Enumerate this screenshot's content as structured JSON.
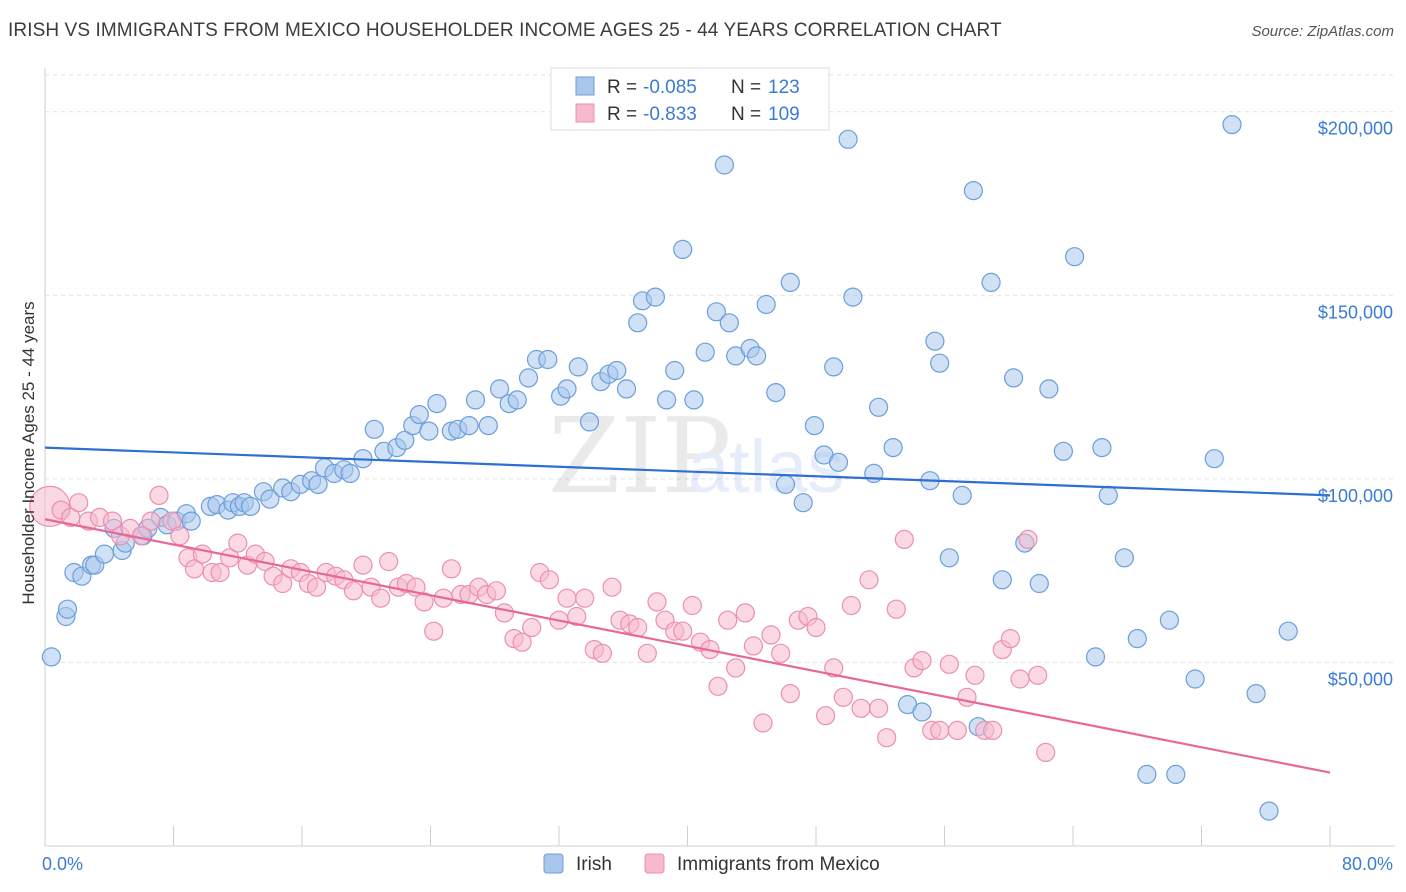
{
  "header": {
    "title": "IRISH VS IMMIGRANTS FROM MEXICO HOUSEHOLDER INCOME AGES 25 - 44 YEARS CORRELATION CHART",
    "source": "Source: ZipAtlas.com"
  },
  "watermark": {
    "zip": "ZIP",
    "atlas": "atlas"
  },
  "legend_box": {
    "r_label": "R =",
    "n_label": "N =",
    "rows": [
      {
        "r": "-0.085",
        "n": "123"
      },
      {
        "r": "-0.833",
        "n": "109"
      }
    ]
  },
  "colors": {
    "irish_fill": "#a9c7ec",
    "irish_stroke": "#6a9fdb",
    "irish_line": "#2f6fd0",
    "mexico_fill": "#f6b9cd",
    "mexico_stroke": "#ec8fae",
    "mexico_line": "#e8679a",
    "axis_text": "#3b7bd4",
    "grid": "#e2e2e2"
  },
  "chart_data": {
    "type": "scatter",
    "title": "IRISH VS IMMIGRANTS FROM MEXICO HOUSEHOLDER INCOME AGES 25 - 44 YEARS CORRELATION CHART",
    "xlabel": "",
    "ylabel": "Householder Income Ages 25 - 44 years",
    "xlim": [
      0,
      80
    ],
    "ylim": [
      0,
      210000
    ],
    "x_tick_labels": [
      "0.0%",
      "80.0%"
    ],
    "y_ticks": [
      50000,
      100000,
      150000,
      200000
    ],
    "y_tick_labels": [
      "$50,000",
      "$100,000",
      "$150,000",
      "$200,000"
    ],
    "grid": true,
    "legend_position": "top-center",
    "series": [
      {
        "name": "Irish",
        "r": -0.085,
        "n": 123,
        "trend": {
          "x": [
            0,
            80
          ],
          "y": [
            108500,
            95500
          ]
        },
        "points": [
          [
            0.4,
            51500
          ],
          [
            1.3,
            62500
          ],
          [
            1.4,
            64500
          ],
          [
            1.8,
            74500
          ],
          [
            2.3,
            73500
          ],
          [
            2.9,
            76500
          ],
          [
            3.1,
            76500
          ],
          [
            3.7,
            79500
          ],
          [
            4.3,
            86500
          ],
          [
            4.8,
            80500
          ],
          [
            5.0,
            82500
          ],
          [
            6.1,
            84500
          ],
          [
            6.4,
            86500
          ],
          [
            7.2,
            89500
          ],
          [
            7.6,
            87500
          ],
          [
            8.2,
            88500
          ],
          [
            8.8,
            90500
          ],
          [
            9.1,
            88500
          ],
          [
            10.3,
            92500
          ],
          [
            10.7,
            93000
          ],
          [
            11.4,
            91500
          ],
          [
            11.7,
            93500
          ],
          [
            12.1,
            92500
          ],
          [
            12.4,
            93500
          ],
          [
            12.8,
            92500
          ],
          [
            13.6,
            96500
          ],
          [
            14.0,
            94500
          ],
          [
            14.8,
            97500
          ],
          [
            15.3,
            96500
          ],
          [
            15.9,
            98500
          ],
          [
            16.6,
            99500
          ],
          [
            17.0,
            98500
          ],
          [
            17.4,
            103000
          ],
          [
            18.0,
            101500
          ],
          [
            18.6,
            102500
          ],
          [
            19.0,
            101500
          ],
          [
            19.8,
            105500
          ],
          [
            20.5,
            113500
          ],
          [
            21.1,
            107500
          ],
          [
            21.9,
            108500
          ],
          [
            22.4,
            110500
          ],
          [
            22.9,
            114500
          ],
          [
            23.3,
            117500
          ],
          [
            23.9,
            113000
          ],
          [
            24.4,
            120500
          ],
          [
            25.3,
            113000
          ],
          [
            25.7,
            113500
          ],
          [
            26.4,
            114500
          ],
          [
            26.8,
            121500
          ],
          [
            27.6,
            114500
          ],
          [
            28.3,
            124500
          ],
          [
            28.9,
            120500
          ],
          [
            29.4,
            121500
          ],
          [
            30.1,
            127500
          ],
          [
            30.6,
            132500
          ],
          [
            31.3,
            132500
          ],
          [
            32.1,
            122500
          ],
          [
            32.5,
            124500
          ],
          [
            33.2,
            130500
          ],
          [
            33.9,
            115500
          ],
          [
            34.6,
            126500
          ],
          [
            35.1,
            128500
          ],
          [
            35.6,
            129500
          ],
          [
            36.2,
            124500
          ],
          [
            36.9,
            142500
          ],
          [
            37.2,
            148500
          ],
          [
            38.0,
            149500
          ],
          [
            38.7,
            121500
          ],
          [
            39.2,
            129500
          ],
          [
            39.7,
            162500
          ],
          [
            40.4,
            121500
          ],
          [
            41.1,
            134500
          ],
          [
            41.8,
            145500
          ],
          [
            42.3,
            185500
          ],
          [
            42.6,
            142500
          ],
          [
            43.0,
            133500
          ],
          [
            43.9,
            135500
          ],
          [
            44.3,
            133500
          ],
          [
            44.9,
            147500
          ],
          [
            45.5,
            123500
          ],
          [
            46.1,
            98500
          ],
          [
            46.4,
            153500
          ],
          [
            47.2,
            93500
          ],
          [
            47.9,
            114500
          ],
          [
            48.5,
            106500
          ],
          [
            49.1,
            130500
          ],
          [
            49.4,
            104500
          ],
          [
            50.0,
            192500
          ],
          [
            50.3,
            149500
          ],
          [
            51.6,
            101500
          ],
          [
            51.9,
            119500
          ],
          [
            52.8,
            108500
          ],
          [
            53.7,
            38500
          ],
          [
            54.6,
            36500
          ],
          [
            55.1,
            99500
          ],
          [
            55.4,
            137500
          ],
          [
            55.7,
            131500
          ],
          [
            56.3,
            78500
          ],
          [
            57.1,
            95500
          ],
          [
            57.8,
            178500
          ],
          [
            58.1,
            32500
          ],
          [
            58.9,
            153500
          ],
          [
            59.6,
            72500
          ],
          [
            60.3,
            127500
          ],
          [
            61.0,
            82500
          ],
          [
            61.9,
            71500
          ],
          [
            62.5,
            124500
          ],
          [
            63.4,
            107500
          ],
          [
            64.1,
            160500
          ],
          [
            65.4,
            51500
          ],
          [
            65.8,
            108500
          ],
          [
            66.2,
            95500
          ],
          [
            67.2,
            78500
          ],
          [
            68.0,
            56500
          ],
          [
            68.6,
            19500
          ],
          [
            70.0,
            61500
          ],
          [
            70.4,
            19500
          ],
          [
            71.6,
            45500
          ],
          [
            72.8,
            105500
          ],
          [
            73.9,
            196500
          ],
          [
            75.4,
            41500
          ],
          [
            76.2,
            9500
          ],
          [
            77.4,
            58500
          ],
          [
            81.0,
            3500
          ],
          [
            82.2,
            19500
          ]
        ]
      },
      {
        "name": "Immigrants from Mexico",
        "r": -0.833,
        "n": 109,
        "trend": {
          "x": [
            0,
            80
          ],
          "y": [
            89000,
            20000
          ]
        },
        "points": [
          [
            0.3,
            92500
          ],
          [
            1.0,
            91500
          ],
          [
            1.6,
            89500
          ],
          [
            2.1,
            93500
          ],
          [
            2.7,
            88500
          ],
          [
            3.4,
            89500
          ],
          [
            4.2,
            88500
          ],
          [
            4.7,
            84500
          ],
          [
            5.3,
            86500
          ],
          [
            6.0,
            84500
          ],
          [
            6.6,
            88500
          ],
          [
            7.1,
            95500
          ],
          [
            7.9,
            88500
          ],
          [
            8.4,
            84500
          ],
          [
            8.9,
            78500
          ],
          [
            9.3,
            75500
          ],
          [
            9.8,
            79500
          ],
          [
            10.4,
            74500
          ],
          [
            10.9,
            74500
          ],
          [
            11.5,
            78500
          ],
          [
            12.0,
            82500
          ],
          [
            12.6,
            76500
          ],
          [
            13.1,
            79500
          ],
          [
            13.7,
            77500
          ],
          [
            14.2,
            73500
          ],
          [
            14.8,
            71500
          ],
          [
            15.3,
            75500
          ],
          [
            15.9,
            74500
          ],
          [
            16.4,
            71500
          ],
          [
            16.9,
            70500
          ],
          [
            17.5,
            74500
          ],
          [
            18.1,
            73500
          ],
          [
            18.6,
            72500
          ],
          [
            19.2,
            69500
          ],
          [
            19.8,
            76500
          ],
          [
            20.3,
            70500
          ],
          [
            20.9,
            67500
          ],
          [
            21.4,
            77500
          ],
          [
            22.0,
            70500
          ],
          [
            22.5,
            71500
          ],
          [
            23.1,
            70500
          ],
          [
            23.6,
            66500
          ],
          [
            24.2,
            58500
          ],
          [
            24.8,
            67500
          ],
          [
            25.3,
            75500
          ],
          [
            25.9,
            68500
          ],
          [
            26.4,
            68500
          ],
          [
            27.0,
            70500
          ],
          [
            27.5,
            68500
          ],
          [
            28.1,
            69500
          ],
          [
            28.6,
            63500
          ],
          [
            29.2,
            56500
          ],
          [
            29.7,
            55500
          ],
          [
            30.3,
            59500
          ],
          [
            30.8,
            74500
          ],
          [
            31.4,
            72500
          ],
          [
            32.0,
            61500
          ],
          [
            32.5,
            67500
          ],
          [
            33.1,
            62500
          ],
          [
            33.6,
            67500
          ],
          [
            34.2,
            53500
          ],
          [
            34.7,
            52500
          ],
          [
            35.3,
            70500
          ],
          [
            35.8,
            61500
          ],
          [
            36.4,
            60500
          ],
          [
            36.9,
            59500
          ],
          [
            37.5,
            52500
          ],
          [
            38.1,
            66500
          ],
          [
            38.6,
            61500
          ],
          [
            39.2,
            58500
          ],
          [
            39.7,
            58500
          ],
          [
            40.3,
            65500
          ],
          [
            40.8,
            55500
          ],
          [
            41.4,
            53500
          ],
          [
            41.9,
            43500
          ],
          [
            42.5,
            61500
          ],
          [
            43.0,
            48500
          ],
          [
            43.6,
            63500
          ],
          [
            44.1,
            54500
          ],
          [
            44.7,
            33500
          ],
          [
            45.2,
            57500
          ],
          [
            45.8,
            52500
          ],
          [
            46.4,
            41500
          ],
          [
            46.9,
            61500
          ],
          [
            47.5,
            62500
          ],
          [
            48.0,
            59500
          ],
          [
            48.6,
            35500
          ],
          [
            49.1,
            48500
          ],
          [
            49.7,
            40500
          ],
          [
            50.2,
            65500
          ],
          [
            50.8,
            37500
          ],
          [
            51.3,
            72500
          ],
          [
            51.9,
            37500
          ],
          [
            52.4,
            29500
          ],
          [
            53.0,
            64500
          ],
          [
            53.5,
            83500
          ],
          [
            54.1,
            48500
          ],
          [
            54.6,
            50500
          ],
          [
            55.2,
            31500
          ],
          [
            55.7,
            31500
          ],
          [
            56.3,
            49500
          ],
          [
            56.8,
            31500
          ],
          [
            57.4,
            40500
          ],
          [
            57.9,
            46500
          ],
          [
            58.5,
            31500
          ],
          [
            59.0,
            31500
          ],
          [
            59.6,
            53500
          ],
          [
            60.1,
            56500
          ],
          [
            60.7,
            45500
          ],
          [
            61.2,
            83500
          ],
          [
            61.8,
            46500
          ],
          [
            62.3,
            25500
          ]
        ]
      }
    ]
  },
  "bottom_legend": {
    "items": [
      {
        "label": "Irish"
      },
      {
        "label": "Immigrants from Mexico"
      }
    ]
  }
}
